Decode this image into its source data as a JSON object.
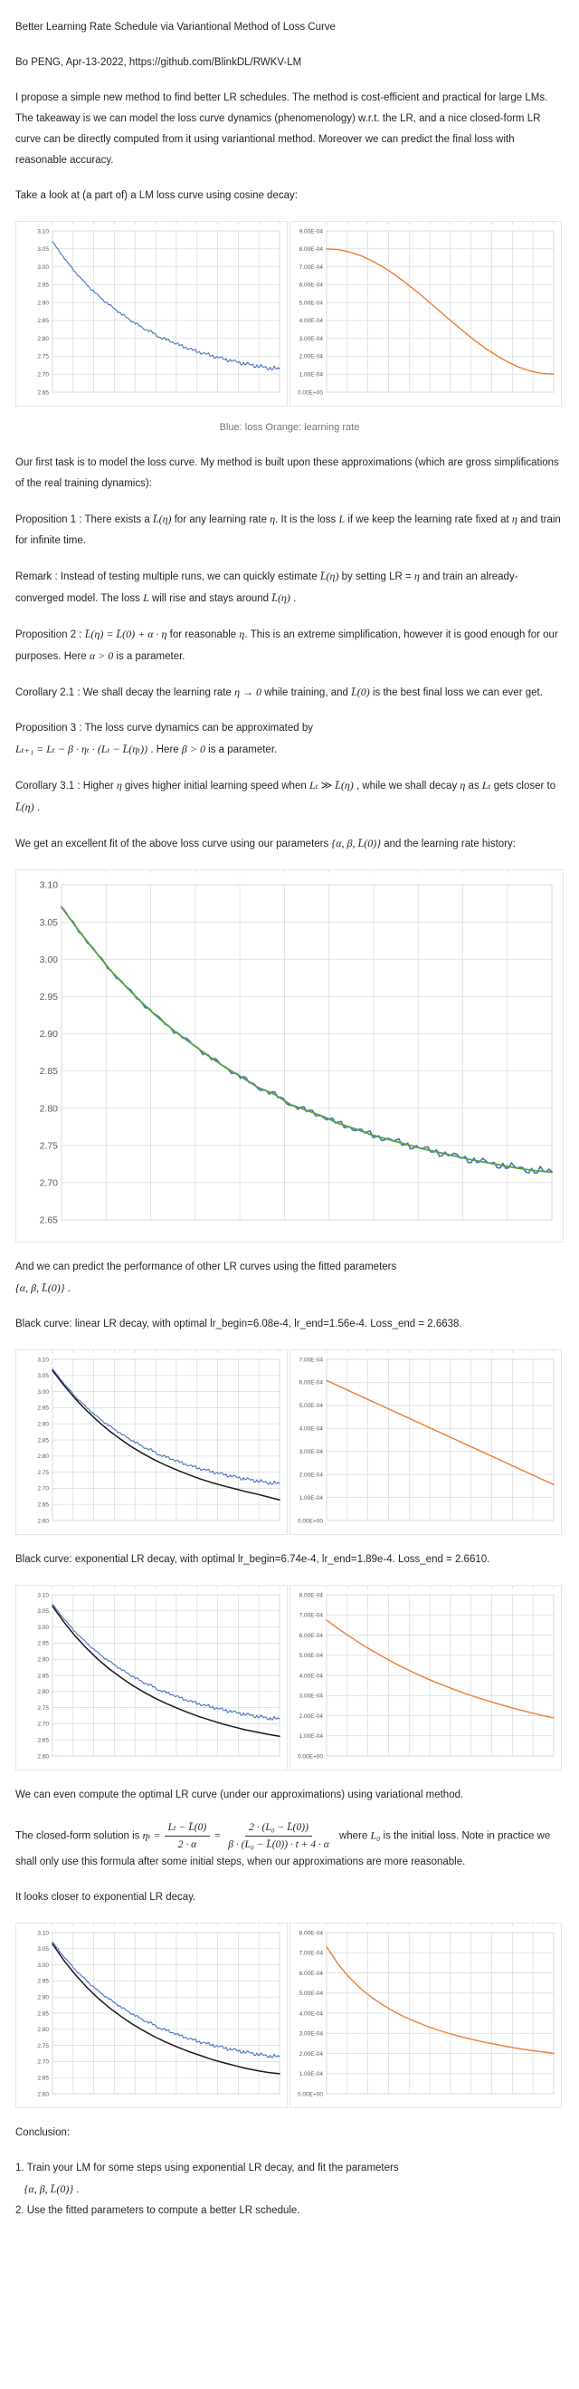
{
  "page": {
    "background": "#ffffff",
    "text_color": "#1f2328",
    "caption_color": "#6e7781",
    "grid_color": "#d9d9d9",
    "axis_label_color": "#595959",
    "series_colors": {
      "loss_blue": "#4472C4",
      "lr_orange": "#ED7D31",
      "fit_green": "#55A33B",
      "fit_black": "#1a1a1a"
    }
  },
  "shared_series": {
    "loss_base": [
      3.07,
      3.04,
      3.012,
      2.985,
      2.962,
      2.94,
      2.92,
      2.902,
      2.886,
      2.87,
      2.855,
      2.842,
      2.828,
      2.819,
      2.805,
      2.797,
      2.789,
      2.779,
      2.772,
      2.764,
      2.758,
      2.752,
      2.746,
      2.741,
      2.736,
      2.731,
      2.727,
      2.723,
      2.719,
      2.716,
      2.714
    ]
  },
  "chart_data": {
    "loss_cosine": {
      "type": "line",
      "title": "loss (cosine LR decay)",
      "ylim": [
        2.65,
        3.1
      ],
      "xdiv": 11,
      "grid": true,
      "yticks": [
        "3.10",
        "3.05",
        "3.00",
        "2.95",
        "2.90",
        "2.85",
        "2.80",
        "2.75",
        "2.70",
        "2.65"
      ],
      "series": [
        {
          "name": "loss",
          "color": "#4472C4",
          "width": 1.1,
          "noise": 0.005,
          "ref": "loss_base"
        }
      ]
    },
    "lr_cosine": {
      "type": "line",
      "title": "learning rate (cosine decay)",
      "ylim": [
        0,
        0.0009
      ],
      "xdiv": 11,
      "grid": true,
      "yticks": [
        "9.00E-04",
        "8.00E-04",
        "7.00E-04",
        "6.00E-04",
        "5.00E-04",
        "4.00E-04",
        "3.00E-04",
        "2.00E-04",
        "1.00E-04",
        "0.00E+00"
      ],
      "series": [
        {
          "name": "learning_rate",
          "color": "#ED7D31",
          "width": 1.4,
          "noise": 0,
          "values": [
            0.0008,
            0.000796,
            0.000783,
            0.000762,
            0.000733,
            0.000698,
            0.000656,
            0.000609,
            0.000558,
            0.000505,
            0.00045,
            0.000395,
            0.000342,
            0.000291,
            0.000244,
            0.000203,
            0.000167,
            0.000138,
            0.000117,
            0.000104,
            0.0001
          ]
        }
      ]
    },
    "loss_fit": {
      "type": "line",
      "title": "loss and fitted model",
      "ylim": [
        2.65,
        3.1
      ],
      "xdiv": 11,
      "grid": true,
      "big": true,
      "yticks": [
        "3.10",
        "3.05",
        "3.00",
        "2.95",
        "2.90",
        "2.85",
        "2.80",
        "2.75",
        "2.70",
        "2.65"
      ],
      "series": [
        {
          "name": "loss",
          "color": "#4472C4",
          "width": 1.6,
          "noise": 0.0045,
          "ref": "loss_base"
        },
        {
          "name": "fit",
          "color": "#55A33B",
          "width": 1.8,
          "noise": 0,
          "ref": "loss_base"
        }
      ]
    },
    "loss_linear_fit": {
      "type": "line",
      "title": "loss vs predicted linear-decay loss",
      "ylim": [
        2.6,
        3.1
      ],
      "xdiv": 11,
      "grid": true,
      "yticks": [
        "3.10",
        "3.05",
        "3.00",
        "2.95",
        "2.90",
        "2.85",
        "2.80",
        "2.75",
        "2.70",
        "2.65",
        "2.60"
      ],
      "series": [
        {
          "name": "loss",
          "color": "#4472C4",
          "width": 1.1,
          "noise": 0.005,
          "ref": "loss_base"
        },
        {
          "name": "predicted_linear",
          "color": "#1a1a1a",
          "width": 1.5,
          "noise": 0,
          "values": [
            3.065,
            3.02,
            2.978,
            2.941,
            2.908,
            2.878,
            2.852,
            2.828,
            2.807,
            2.788,
            2.771,
            2.756,
            2.742,
            2.729,
            2.718,
            2.708,
            2.699,
            2.69,
            2.682,
            2.673,
            2.664
          ]
        }
      ]
    },
    "lr_linear": {
      "type": "line",
      "title": "linear LR decay",
      "ylim": [
        0,
        0.0007
      ],
      "xdiv": 11,
      "grid": true,
      "yticks": [
        "7.00E-04",
        "6.00E-04",
        "5.00E-04",
        "4.00E-04",
        "3.00E-04",
        "2.00E-04",
        "1.00E-04",
        "0.00E+00"
      ],
      "series": [
        {
          "name": "learning_rate",
          "color": "#ED7D31",
          "width": 1.4,
          "noise": 0,
          "values": [
            0.000608,
            0.000156
          ]
        }
      ]
    },
    "loss_exp_fit": {
      "type": "line",
      "title": "loss vs predicted exponential-decay loss",
      "ylim": [
        2.6,
        3.1
      ],
      "xdiv": 11,
      "grid": true,
      "yticks": [
        "3.10",
        "3.05",
        "3.00",
        "2.95",
        "2.90",
        "2.85",
        "2.80",
        "2.75",
        "2.70",
        "2.65",
        "2.60"
      ],
      "series": [
        {
          "name": "loss",
          "color": "#4472C4",
          "width": 1.1,
          "noise": 0.005,
          "ref": "loss_base"
        },
        {
          "name": "predicted_exponential",
          "color": "#1a1a1a",
          "width": 1.5,
          "noise": 0,
          "values": [
            3.065,
            3.016,
            2.972,
            2.934,
            2.9,
            2.87,
            2.844,
            2.82,
            2.799,
            2.78,
            2.763,
            2.748,
            2.734,
            2.721,
            2.71,
            2.699,
            2.69,
            2.681,
            2.674,
            2.667,
            2.661
          ]
        }
      ]
    },
    "lr_exp": {
      "type": "line",
      "title": "exponential LR decay",
      "ylim": [
        0,
        0.0008
      ],
      "xdiv": 11,
      "grid": true,
      "yticks": [
        "8.00E-04",
        "7.00E-04",
        "6.00E-04",
        "5.00E-04",
        "4.00E-04",
        "3.00E-04",
        "2.00E-04",
        "1.00E-04",
        "0.00E+00"
      ],
      "series": [
        {
          "name": "learning_rate",
          "color": "#ED7D31",
          "width": 1.4,
          "noise": 0,
          "values": [
            0.000674,
            0.000633,
            0.000594,
            0.000557,
            0.000523,
            0.000491,
            0.00046,
            0.000432,
            0.000405,
            0.00038,
            0.000357,
            0.000335,
            0.000314,
            0.000295,
            0.000277,
            0.00026,
            0.000244,
            0.000229,
            0.000215,
            0.000201,
            0.000189
          ]
        }
      ]
    },
    "loss_var": {
      "type": "line",
      "title": "loss vs variational optimal LR loss",
      "ylim": [
        2.6,
        3.1
      ],
      "xdiv": 11,
      "grid": true,
      "yticks": [
        "3.10",
        "3.05",
        "3.00",
        "2.95",
        "2.90",
        "2.85",
        "2.80",
        "2.75",
        "2.70",
        "2.65",
        "2.60"
      ],
      "series": [
        {
          "name": "loss",
          "color": "#4472C4",
          "width": 1.1,
          "noise": 0.005,
          "ref": "loss_base"
        },
        {
          "name": "predicted_optimal",
          "color": "#1a1a1a",
          "width": 1.5,
          "noise": 0,
          "values": [
            3.065,
            3.014,
            2.97,
            2.931,
            2.897,
            2.867,
            2.841,
            2.817,
            2.796,
            2.777,
            2.76,
            2.745,
            2.731,
            2.719,
            2.707,
            2.697,
            2.688,
            2.679,
            2.672,
            2.666,
            2.662
          ]
        }
      ]
    },
    "lr_var": {
      "type": "line",
      "title": "variational optimal LR curve",
      "ylim": [
        0,
        0.0008
      ],
      "xdiv": 11,
      "grid": true,
      "yticks": [
        "8.00E-04",
        "7.00E-04",
        "6.00E-04",
        "5.00E-04",
        "4.00E-04",
        "3.00E-04",
        "2.00E-04",
        "1.00E-04",
        "0.00E+00"
      ],
      "series": [
        {
          "name": "learning_rate",
          "color": "#ED7D31",
          "width": 1.4,
          "noise": 0,
          "values": [
            0.00073,
            0.000645,
            0.000577,
            0.000522,
            0.000477,
            0.000439,
            0.000406,
            0.000378,
            0.000354,
            0.000332,
            0.000313,
            0.000296,
            0.000281,
            0.000267,
            0.000255,
            0.000244,
            0.000233,
            0.000224,
            0.000215,
            0.000208,
            0.0002
          ]
        }
      ]
    }
  },
  "blocks": [
    {
      "type": "p",
      "name": "page-title",
      "segments": [
        {
          "t": "Better Learning Rate Schedule via Variantional Method of Loss Curve"
        }
      ]
    },
    {
      "type": "p",
      "name": "byline",
      "segments": [
        {
          "t": "Bo PENG, Apr-13-2022, https://github.com/BlinkDL/RWKV-LM"
        }
      ]
    },
    {
      "type": "p",
      "segments": [
        {
          "t": "I propose a simple new method to find better LR schedules. The method is cost-efficient and practical for large LMs. The takeaway is we can model the loss curve dynamics (phenomenology) w.r.t. the LR, and a nice closed-form LR curve can be directly computed from it using variantional method. Moreover we can predict the final loss with reasonable accuracy."
        }
      ]
    },
    {
      "type": "p",
      "segments": [
        {
          "t": "Take a look at (a part of) a LM loss curve using cosine decay:"
        }
      ]
    },
    {
      "type": "chart_pair",
      "left": "loss_cosine",
      "right": "lr_cosine"
    },
    {
      "type": "caption",
      "segments": [
        {
          "t": "Blue: loss Orange: learning rate"
        }
      ]
    },
    {
      "type": "p",
      "segments": [
        {
          "t": "Our first task is to model the loss curve. My method is built upon these approximations (which are gross simplifications of the real training dynamics):"
        }
      ]
    },
    {
      "type": "p",
      "segments": [
        {
          "t": "Proposition 1 : There exists a "
        },
        {
          "m": "L̄(η)"
        },
        {
          "t": " for any learning rate "
        },
        {
          "m": "η"
        },
        {
          "t": ". It is the loss "
        },
        {
          "m": "L"
        },
        {
          "t": " if we keep the learning rate fixed at "
        },
        {
          "m": "η"
        },
        {
          "t": " and train for infinite time."
        }
      ]
    },
    {
      "type": "p",
      "segments": [
        {
          "t": "Remark : Instead of testing multiple runs, we can quickly estimate "
        },
        {
          "m": "L̄(η)"
        },
        {
          "t": " by setting LR = "
        },
        {
          "m": "η"
        },
        {
          "t": " and train an already-converged model. The loss "
        },
        {
          "m": "L"
        },
        {
          "t": " will rise and stays around "
        },
        {
          "m": "L̄(η)"
        },
        {
          "t": " ."
        }
      ]
    },
    {
      "type": "p",
      "segments": [
        {
          "t": "Proposition 2 : "
        },
        {
          "m": "L̄(η) = L̄(0) + α · η"
        },
        {
          "t": " for reasonable "
        },
        {
          "m": "η"
        },
        {
          "t": ". This is an extreme simplification, however it is good enough for our purposes. Here "
        },
        {
          "m": "α > 0"
        },
        {
          "t": " is a parameter."
        }
      ]
    },
    {
      "type": "p",
      "segments": [
        {
          "t": "Corollary 2.1 : We shall decay the learning rate "
        },
        {
          "m": "η → 0"
        },
        {
          "t": " while training, and "
        },
        {
          "m": "L̄(0)"
        },
        {
          "t": " is the best final loss we can ever get."
        }
      ]
    },
    {
      "type": "p",
      "segments": [
        {
          "t": "Proposition 3 : The loss curve dynamics can be approximated by"
        },
        {
          "br": true
        },
        {
          "m": "Lₜ₊₁ = Lₜ − β · ηₜ · (Lₜ − L̄(ηₜ))"
        },
        {
          "t": " . Here "
        },
        {
          "m": "β > 0"
        },
        {
          "t": " is a parameter."
        }
      ]
    },
    {
      "type": "p",
      "segments": [
        {
          "t": "Corollary 3.1 : Higher "
        },
        {
          "m": "η"
        },
        {
          "t": " gives higher initial learning speed when "
        },
        {
          "m": "Lₜ ≫ L̄(η)"
        },
        {
          "t": " , while we shall decay "
        },
        {
          "m": "η"
        },
        {
          "t": " as "
        },
        {
          "m": "Lₜ"
        },
        {
          "t": " gets closer to "
        },
        {
          "m": "L̄(η)"
        },
        {
          "t": " ."
        }
      ]
    },
    {
      "type": "p",
      "segments": [
        {
          "t": "We get an excellent fit of the above loss curve using our parameters "
        },
        {
          "m": "{α, β, L̄(0)}"
        },
        {
          "t": " and the learning rate history:"
        }
      ]
    },
    {
      "type": "chart",
      "ref": "loss_fit"
    },
    {
      "type": "p",
      "segments": [
        {
          "t": "And we can predict the performance of other LR curves using the fitted parameters"
        },
        {
          "br": true
        },
        {
          "m": "{α, β, L̄(0)}"
        },
        {
          "t": " ."
        }
      ]
    },
    {
      "type": "p",
      "segments": [
        {
          "t": "Black curve: linear LR decay, with optimal lr_begin=6.08e-4, lr_end=1.56e-4. Loss_end = 2.6638."
        }
      ]
    },
    {
      "type": "chart_pair",
      "left": "loss_linear_fit",
      "right": "lr_linear"
    },
    {
      "type": "p",
      "segments": [
        {
          "t": "Black curve: exponential LR decay, with optimal lr_begin=6.74e-4, lr_end=1.89e-4. Loss_end = 2.6610."
        }
      ]
    },
    {
      "type": "chart_pair",
      "left": "loss_exp_fit",
      "right": "lr_exp"
    },
    {
      "type": "p",
      "segments": [
        {
          "t": "We can even compute the optimal LR curve (under our approximations) using variational method."
        }
      ]
    },
    {
      "type": "p",
      "name": "closed-form-solution",
      "segments": [
        {
          "t": "The closed-form solution is "
        },
        {
          "m": "ηₜ ="
        },
        {
          "frac": {
            "num": "Lₜ − L̄(0)",
            "den": "2 · α"
          }
        },
        {
          "m": "="
        },
        {
          "frac": {
            "num": "2 · (L₀ − L̄(0))",
            "den": "β · (L₀ − L̄(0)) · t + 4 · α"
          }
        },
        {
          "t": " where "
        },
        {
          "m": "L₀"
        },
        {
          "t": " is the initial loss. Note in practice we shall only use this formula after some initial steps, when our approximations are more reasonable."
        }
      ]
    },
    {
      "type": "p",
      "segments": [
        {
          "t": "It looks closer to exponential LR decay."
        }
      ]
    },
    {
      "type": "chart_pair",
      "left": "loss_var",
      "right": "lr_var"
    },
    {
      "type": "p",
      "segments": [
        {
          "t": "Conclusion:"
        }
      ]
    },
    {
      "type": "p",
      "name": "conclusion-list",
      "segments": [
        {
          "t": "1. Train your LM for some steps using exponential LR decay, and fit the parameters"
        },
        {
          "br": true
        },
        {
          "t": "   "
        },
        {
          "m": "{α, β, L̄(0)}"
        },
        {
          "t": " ."
        },
        {
          "br": true
        },
        {
          "t": "2. Use the fitted parameters to compute a better LR schedule."
        }
      ]
    }
  ]
}
